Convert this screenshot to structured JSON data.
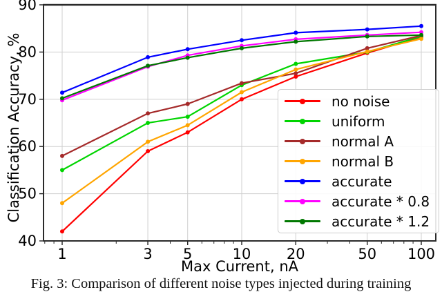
{
  "figure": {
    "caption": "Fig. 3: Comparison of different noise types injected during training"
  },
  "chart_data": {
    "type": "line",
    "title": "",
    "xlabel": "Max Current, nA",
    "ylabel": "Classification Accuracy, %",
    "x_scale": "log",
    "grid": true,
    "legend_position": "center right",
    "xlim": [
      0.79,
      120
    ],
    "ylim": [
      40,
      90
    ],
    "x": [
      1,
      3,
      5,
      10,
      20,
      50,
      100
    ],
    "x_ticks": [
      "1",
      "3",
      "5",
      "10",
      "20",
      "50",
      "100"
    ],
    "x_minor_ticks": [
      0.8,
      0.9,
      2,
      4,
      6,
      7,
      8,
      9,
      30,
      40,
      60,
      70,
      80,
      90
    ],
    "y_ticks": [
      "40",
      "50",
      "60",
      "70",
      "80",
      "90"
    ],
    "series": [
      {
        "name": "no noise",
        "color": "#ff0000",
        "values": [
          42,
          59,
          63,
          70,
          74.8,
          79.8,
          83.2
        ]
      },
      {
        "name": "uniform",
        "color": "#00d400",
        "values": [
          55,
          65,
          66.3,
          73,
          77.5,
          80,
          83.3
        ]
      },
      {
        "name": "normal A",
        "color": "#a52a2a",
        "values": [
          58,
          67,
          69,
          73.4,
          75.5,
          80.8,
          83.5
        ]
      },
      {
        "name": "normal B",
        "color": "#ffa500",
        "values": [
          48,
          61,
          64.5,
          71.5,
          76.3,
          80.1,
          82.8
        ]
      },
      {
        "name": "accurate",
        "color": "#0000ff",
        "values": [
          71.4,
          78.9,
          80.6,
          82.5,
          84.1,
          84.8,
          85.5
        ]
      },
      {
        "name": "accurate * 0.8",
        "color": "#ff00ff",
        "values": [
          69.8,
          76.9,
          79.3,
          81.3,
          82.7,
          83.6,
          84.2
        ]
      },
      {
        "name": "accurate * 1.2",
        "color": "#007800",
        "values": [
          70.2,
          77.1,
          78.8,
          80.8,
          82.2,
          83.3,
          83.6
        ]
      }
    ]
  }
}
